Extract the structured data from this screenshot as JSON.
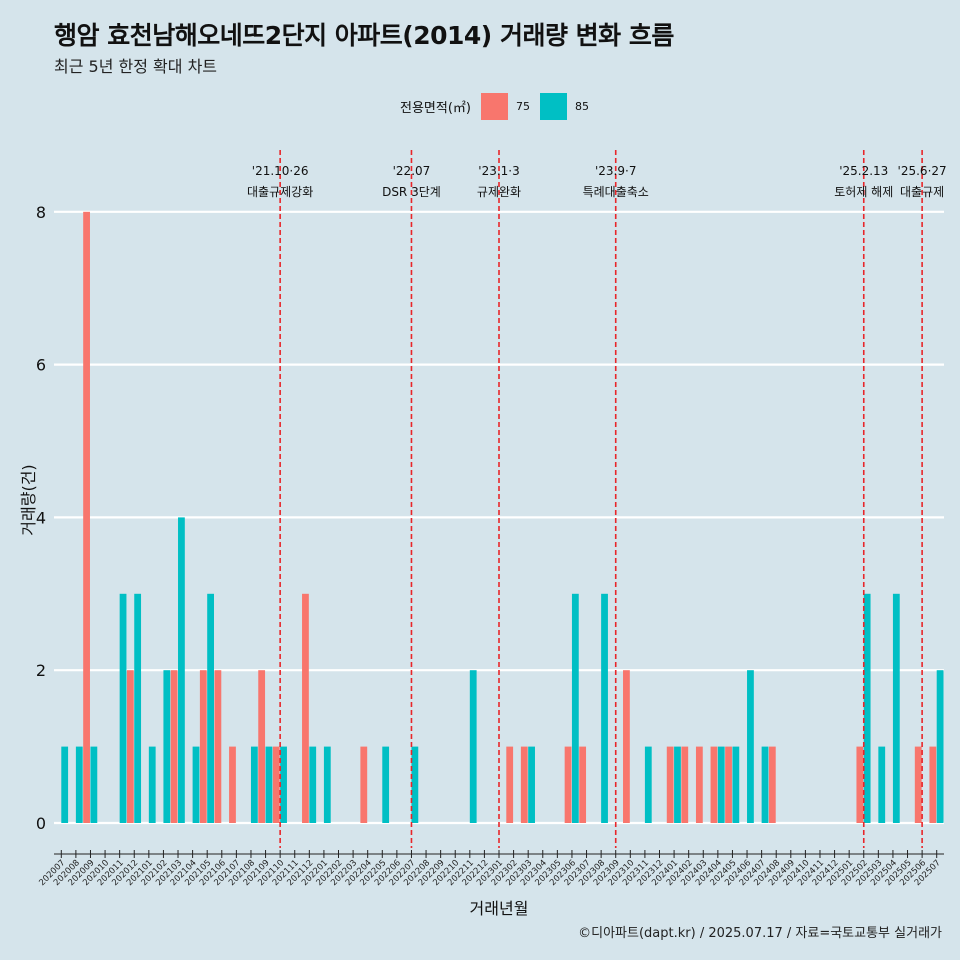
{
  "title": "행암 효천남해오네뜨2단지 아파트(2014) 거래량 변화 흐름",
  "subtitle": "최근 5년 한정 확대 차트",
  "legend": {
    "title": "전용면적(㎡)",
    "items": [
      {
        "label": "75",
        "color": "#f8766d"
      },
      {
        "label": "85",
        "color": "#00bfc4"
      }
    ]
  },
  "caption": "©디아파트(dapt.kr) / 2025.07.17 / 자료=국토교통부 실거래가",
  "chart_data": {
    "type": "bar",
    "xlabel": "거래년월",
    "ylabel": "거래량(건)",
    "ylim": [
      0,
      8.7
    ],
    "yticks": [
      0,
      2,
      4,
      6,
      8
    ],
    "grid": "horizontal",
    "legend_position": "top",
    "categories": [
      "202007",
      "202008",
      "202009",
      "202010",
      "202011",
      "202012",
      "202101",
      "202102",
      "202103",
      "202104",
      "202105",
      "202106",
      "202107",
      "202108",
      "202109",
      "202110",
      "202111",
      "202112",
      "202201",
      "202202",
      "202203",
      "202204",
      "202205",
      "202206",
      "202207",
      "202208",
      "202209",
      "202210",
      "202211",
      "202212",
      "202301",
      "202302",
      "202303",
      "202304",
      "202305",
      "202306",
      "202307",
      "202308",
      "202309",
      "202310",
      "202311",
      "202312",
      "202401",
      "202402",
      "202403",
      "202404",
      "202405",
      "202406",
      "202407",
      "202408",
      "202409",
      "202410",
      "202411",
      "202412",
      "202501",
      "202502",
      "202503",
      "202504",
      "202505",
      "202506",
      "202507"
    ],
    "series": [
      {
        "name": "75",
        "color": "#f8766d",
        "values": [
          0,
          0,
          8,
          0,
          0,
          2,
          0,
          0,
          2,
          0,
          2,
          2,
          1,
          0,
          2,
          1,
          0,
          3,
          0,
          0,
          0,
          1,
          0,
          0,
          0,
          0,
          0,
          0,
          0,
          0,
          0,
          1,
          1,
          0,
          0,
          1,
          1,
          0,
          0,
          2,
          0,
          0,
          1,
          1,
          1,
          1,
          1,
          0,
          0,
          1,
          0,
          0,
          0,
          0,
          0,
          1,
          0,
          0,
          0,
          1,
          1
        ]
      },
      {
        "name": "85",
        "color": "#00bfc4",
        "values": [
          1,
          1,
          1,
          0,
          3,
          3,
          1,
          2,
          4,
          1,
          3,
          0,
          0,
          1,
          1,
          1,
          0,
          1,
          1,
          0,
          0,
          0,
          1,
          0,
          1,
          0,
          0,
          0,
          2,
          0,
          0,
          0,
          1,
          0,
          0,
          3,
          0,
          3,
          0,
          0,
          1,
          0,
          1,
          0,
          0,
          1,
          1,
          2,
          1,
          0,
          0,
          0,
          0,
          0,
          0,
          3,
          1,
          3,
          0,
          0,
          2
        ]
      }
    ],
    "annotations": [
      {
        "date": "'21.10·26",
        "label": "대출규제강화",
        "at": "202110"
      },
      {
        "date": "'22.07",
        "label": "DSR 3단계",
        "at": "202207"
      },
      {
        "date": "'23.1·3",
        "label": "규제완화",
        "at": "202301"
      },
      {
        "date": "'23.9·7",
        "label": "특례대출축소",
        "at": "202309"
      },
      {
        "date": "'25.2.13",
        "label": "토허제 해제",
        "at": "202502"
      },
      {
        "date": "'25.6·27",
        "label": "대출규제",
        "at": "202506"
      }
    ]
  }
}
